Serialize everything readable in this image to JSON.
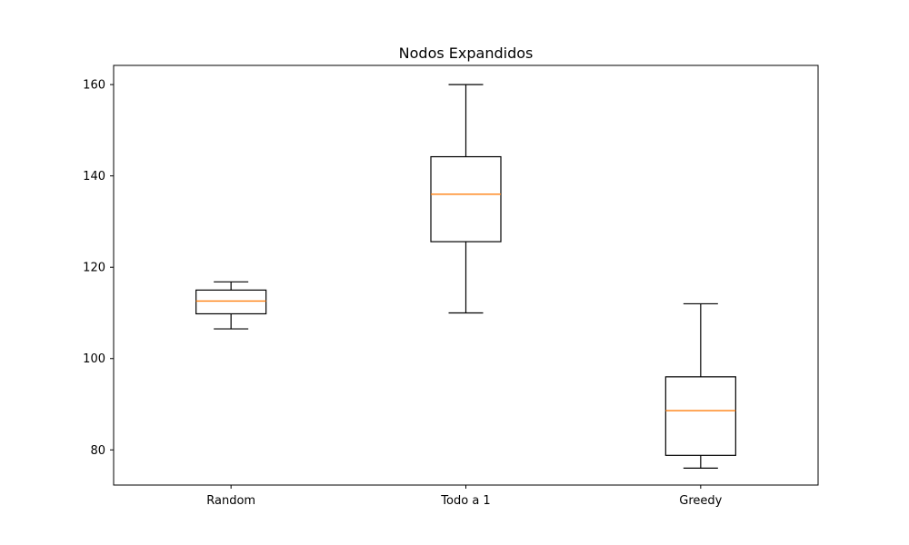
{
  "chart_data": {
    "type": "boxplot",
    "title": "Nodos Expandidos",
    "xlabel": "",
    "ylabel": "",
    "categories": [
      "Random",
      "Todo a 1",
      "Greedy"
    ],
    "boxes": [
      {
        "whisker_low": 106.5,
        "q1": 109.8,
        "median": 112.6,
        "q3": 115.0,
        "whisker_high": 116.8
      },
      {
        "whisker_low": 110.0,
        "q1": 125.6,
        "median": 136.0,
        "q3": 144.2,
        "whisker_high": 160.0
      },
      {
        "whisker_low": 76.0,
        "q1": 78.8,
        "median": 88.6,
        "q3": 96.0,
        "whisker_high": 112.0
      }
    ],
    "yticks": [
      80,
      100,
      120,
      140,
      160
    ],
    "ylim": [
      72.3,
      164.2
    ],
    "grid": false,
    "colors": {
      "box": "#000000",
      "median": "#ff7f0e",
      "axes": "#000000"
    }
  }
}
